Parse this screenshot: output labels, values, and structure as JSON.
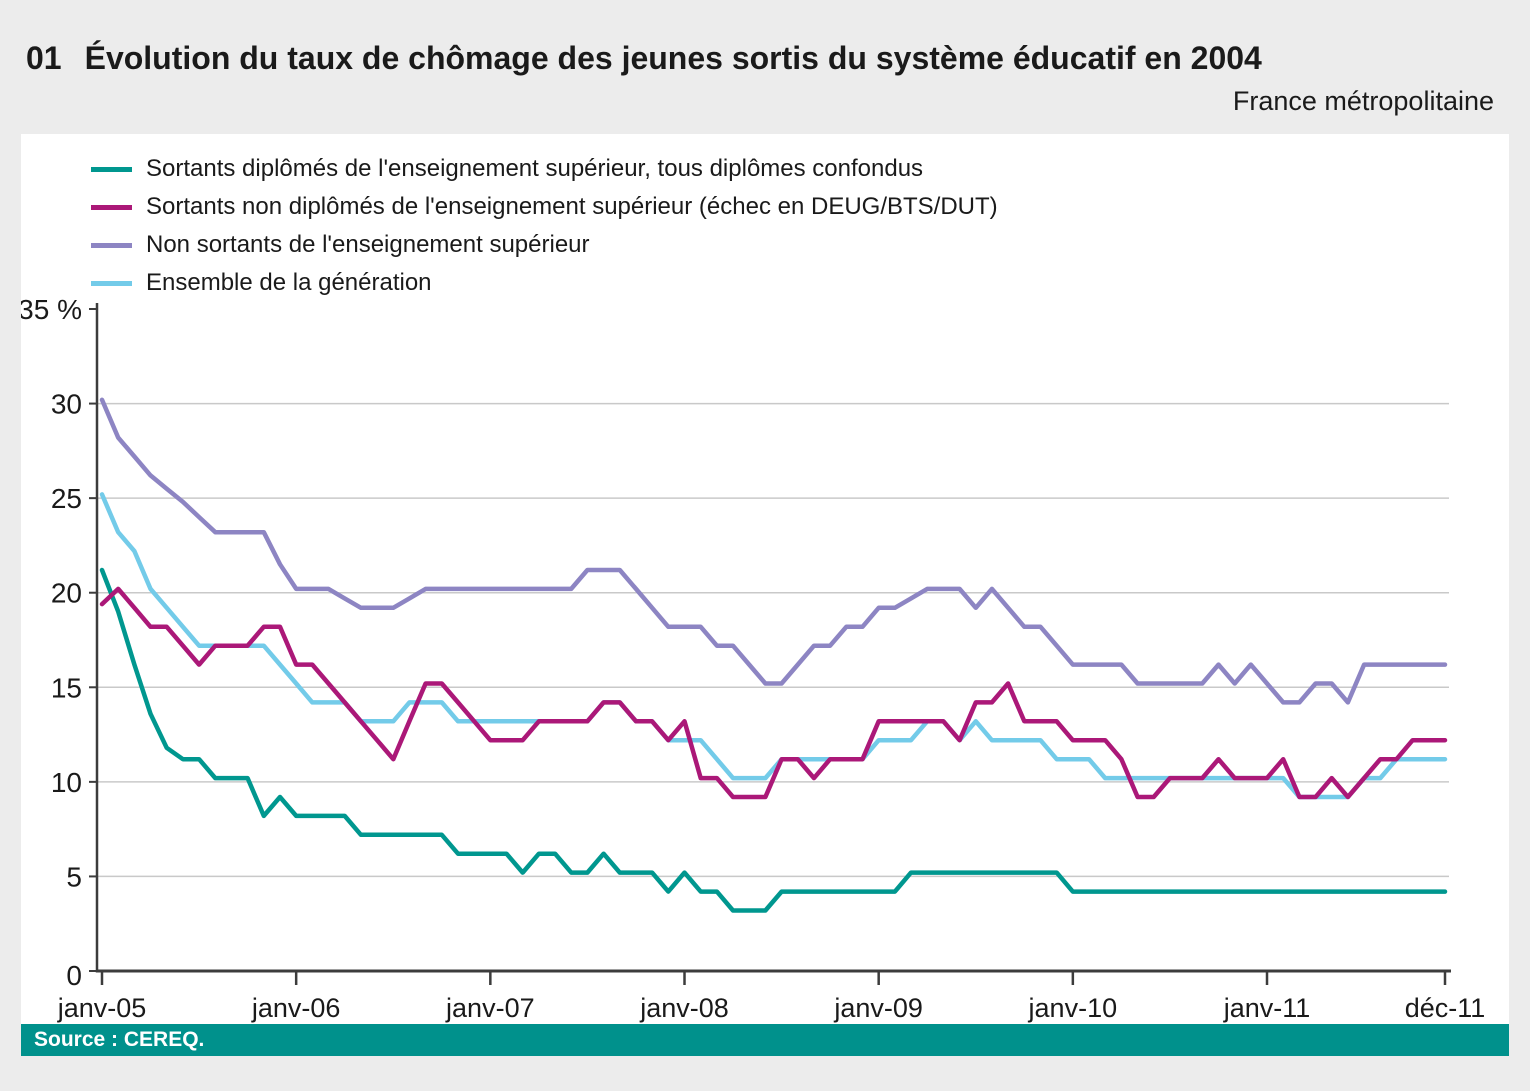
{
  "header": {
    "number": "01",
    "title": "Évolution du taux de chômage des jeunes sortis du système éducatif en 2004",
    "region_note": "France métropolitaine"
  },
  "footer": {
    "source": "Source : CEREQ."
  },
  "colors": {
    "background": "#ECECEC",
    "panel": "#FFFFFF",
    "source_bar": "#00918C",
    "axis": "#3C3C3C",
    "gridline": "#C9C9C9",
    "text": "#1A1A1A"
  },
  "chart_data": {
    "type": "line",
    "title": "Évolution du taux de chômage des jeunes sortis du système éducatif en 2004",
    "xlabel": "",
    "ylabel": "%",
    "ylim": [
      0,
      35
    ],
    "y_ticks": [
      0,
      5,
      10,
      15,
      20,
      25,
      30,
      35
    ],
    "y_top_label": "35 %",
    "gridlines": [
      5,
      10,
      15,
      20,
      25,
      30
    ],
    "grid": "horizontal-only",
    "legend_position": "top-left",
    "x_unit": "months janv-05 … déc-11 (84 points)",
    "x_tick_labels": [
      {
        "index": 0,
        "label": "janv-05"
      },
      {
        "index": 12,
        "label": "janv-06"
      },
      {
        "index": 24,
        "label": "janv-07"
      },
      {
        "index": 36,
        "label": "janv-08"
      },
      {
        "index": 48,
        "label": "janv-09"
      },
      {
        "index": 60,
        "label": "janv-10"
      },
      {
        "index": 72,
        "label": "janv-11"
      },
      {
        "index": 83,
        "label": "déc-11"
      }
    ],
    "series": [
      {
        "name": "Sortants diplômés de l'enseignement supérieur, tous diplômes confondus",
        "color": "#00978F",
        "values": [
          21.2,
          19.0,
          16.2,
          13.6,
          11.8,
          11.2,
          11.2,
          10.2,
          10.2,
          10.2,
          8.2,
          9.2,
          8.2,
          8.2,
          8.2,
          8.2,
          7.2,
          7.2,
          7.2,
          7.2,
          7.2,
          7.2,
          6.2,
          6.2,
          6.2,
          6.2,
          5.2,
          6.2,
          6.2,
          5.2,
          5.2,
          6.2,
          5.2,
          5.2,
          5.2,
          4.2,
          5.2,
          4.2,
          4.2,
          3.2,
          3.2,
          3.2,
          4.2,
          4.2,
          4.2,
          4.2,
          4.2,
          4.2,
          4.2,
          4.2,
          5.2,
          5.2,
          5.2,
          5.2,
          5.2,
          5.2,
          5.2,
          5.2,
          5.2,
          5.2,
          4.2,
          4.2,
          4.2,
          4.2,
          4.2,
          4.2,
          4.2,
          4.2,
          4.2,
          4.2,
          4.2,
          4.2,
          4.2,
          4.2,
          4.2,
          4.2,
          4.2,
          4.2,
          4.2,
          4.2,
          4.2,
          4.2,
          4.2,
          4.2
        ]
      },
      {
        "name": "Sortants non diplômés de l'enseignement supérieur (échec en DEUG/BTS/DUT)",
        "color": "#AB1878",
        "values": [
          19.4,
          20.2,
          19.2,
          18.2,
          18.2,
          17.2,
          16.2,
          17.2,
          17.2,
          17.2,
          18.2,
          18.2,
          16.2,
          16.2,
          15.2,
          14.2,
          13.2,
          12.2,
          11.2,
          13.2,
          15.2,
          15.2,
          14.2,
          13.2,
          12.2,
          12.2,
          12.2,
          13.2,
          13.2,
          13.2,
          13.2,
          14.2,
          14.2,
          13.2,
          13.2,
          12.2,
          13.2,
          10.2,
          10.2,
          9.2,
          9.2,
          9.2,
          11.2,
          11.2,
          10.2,
          11.2,
          11.2,
          11.2,
          13.2,
          13.2,
          13.2,
          13.2,
          13.2,
          12.2,
          14.2,
          14.2,
          15.2,
          13.2,
          13.2,
          13.2,
          12.2,
          12.2,
          12.2,
          11.2,
          9.2,
          9.2,
          10.2,
          10.2,
          10.2,
          11.2,
          10.2,
          10.2,
          10.2,
          11.2,
          9.2,
          9.2,
          10.2,
          9.2,
          10.2,
          11.2,
          11.2,
          12.2,
          12.2,
          12.2
        ]
      },
      {
        "name": "Non sortants de l'enseignement supérieur",
        "color": "#8D85C3",
        "values": [
          30.2,
          28.2,
          27.2,
          26.2,
          25.5,
          24.8,
          24.0,
          23.2,
          23.2,
          23.2,
          23.2,
          21.5,
          20.2,
          20.2,
          20.2,
          19.7,
          19.2,
          19.2,
          19.2,
          19.7,
          20.2,
          20.2,
          20.2,
          20.2,
          20.2,
          20.2,
          20.2,
          20.2,
          20.2,
          20.2,
          21.2,
          21.2,
          21.2,
          20.2,
          19.2,
          18.2,
          18.2,
          18.2,
          17.2,
          17.2,
          16.2,
          15.2,
          15.2,
          16.2,
          17.2,
          17.2,
          18.2,
          18.2,
          19.2,
          19.2,
          19.7,
          20.2,
          20.2,
          20.2,
          19.2,
          20.2,
          19.2,
          18.2,
          18.2,
          17.2,
          16.2,
          16.2,
          16.2,
          16.2,
          15.2,
          15.2,
          15.2,
          15.2,
          15.2,
          16.2,
          15.2,
          16.2,
          15.2,
          14.2,
          14.2,
          15.2,
          15.2,
          14.2,
          16.2,
          16.2,
          16.2,
          16.2,
          16.2,
          16.2
        ]
      },
      {
        "name": "Ensemble de la génération",
        "color": "#73CBE9",
        "values": [
          25.2,
          23.2,
          22.2,
          20.2,
          19.2,
          18.2,
          17.2,
          17.2,
          17.2,
          17.2,
          17.2,
          16.2,
          15.2,
          14.2,
          14.2,
          14.2,
          13.2,
          13.2,
          13.2,
          14.2,
          14.2,
          14.2,
          13.2,
          13.2,
          13.2,
          13.2,
          13.2,
          13.2,
          13.2,
          13.2,
          13.2,
          14.2,
          14.2,
          13.2,
          13.2,
          12.2,
          12.2,
          12.2,
          11.2,
          10.2,
          10.2,
          10.2,
          11.2,
          11.2,
          11.2,
          11.2,
          11.2,
          11.2,
          12.2,
          12.2,
          12.2,
          13.2,
          13.2,
          12.2,
          13.2,
          12.2,
          12.2,
          12.2,
          12.2,
          11.2,
          11.2,
          11.2,
          10.2,
          10.2,
          10.2,
          10.2,
          10.2,
          10.2,
          10.2,
          10.2,
          10.2,
          10.2,
          10.2,
          10.2,
          9.2,
          9.2,
          9.2,
          9.2,
          10.2,
          10.2,
          11.2,
          11.2,
          11.2,
          11.2
        ]
      }
    ],
    "legend_order": [
      0,
      1,
      2,
      3
    ],
    "draw_order": [
      0,
      3,
      1,
      2
    ]
  }
}
